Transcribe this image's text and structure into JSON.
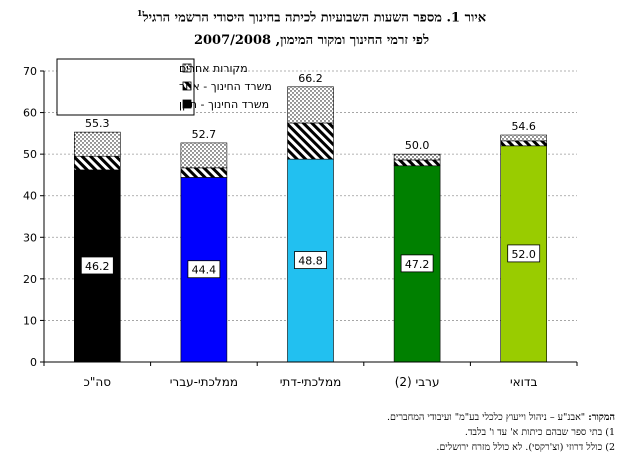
{
  "title": {
    "line1": "איור 1. מספר השעות השבועיות לכיתה בחינוך היסודי הרשמי הרגיל",
    "line1_sup": "1",
    "line2": "לפי זרמי החינוך ומקור המימון, 2007/2008"
  },
  "source": {
    "label": "המקור:",
    "text": "\"אבנ\"ע – ניהול וייעוץ כלכלי בע\"מ\" ועיבודי המחברים.",
    "note1": "1) בתי ספר שבהם כיתות א' עד ו' בלבד.",
    "note2": "2) כולל דרוזי (וצ'רקסי). לא כולל מזרח ירושלים."
  },
  "colors": {
    "bar_base": [
      "#000000",
      "#0000ff",
      "#22c0f0",
      "#008000",
      "#99cc00"
    ],
    "axis": "#000000",
    "grid": "#999999"
  },
  "chart_data": {
    "type": "bar",
    "stacked": true,
    "categories": [
      "סה\"כ",
      "ממלכתי-עברי",
      "ממלכתי-דתי",
      "ערבי (2)",
      "בדואי"
    ],
    "series": [
      {
        "name": "משרד החינוך - תקן",
        "values": [
          46.2,
          44.4,
          48.8,
          47.2,
          52.0
        ]
      },
      {
        "name": "משרד החינוך - אחר",
        "values": [
          3.3,
          2.3,
          8.7,
          1.4,
          1.2
        ]
      },
      {
        "name": "מקורות אחרים",
        "values": [
          5.8,
          6.0,
          8.7,
          1.4,
          1.4
        ]
      }
    ],
    "totals": [
      "55.3",
      "52.7",
      "66.2",
      "50.0",
      "54.6"
    ],
    "base_labels": [
      "46.2",
      "44.4",
      "48.8",
      "47.2",
      "52.0"
    ],
    "ylim": [
      0,
      70
    ],
    "yticks": [
      "0",
      "10",
      "20",
      "30",
      "40",
      "50",
      "60",
      "70"
    ],
    "grid": true,
    "legend_position": "top-left"
  }
}
